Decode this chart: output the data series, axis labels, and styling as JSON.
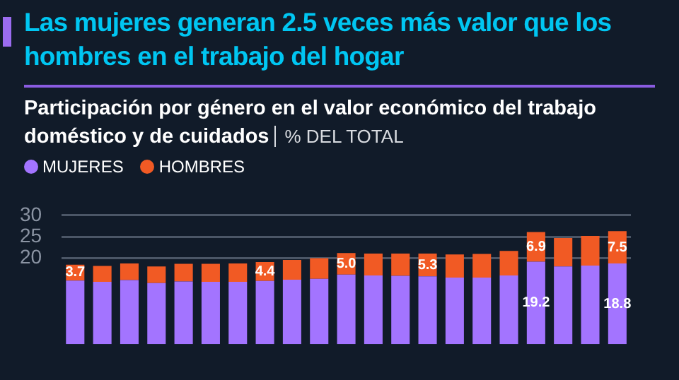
{
  "chart_data": {
    "type": "bar",
    "title": "Las mujeres generan 2.5 veces más valor que los hombres en el trabajo del hogar",
    "subtitle": "Participación por género en el valor económico del trabajo doméstico y de cuidados",
    "ylabel": "% DEL TOTAL",
    "categories": [
      null,
      null,
      null,
      null,
      null,
      null,
      null,
      null,
      null,
      null,
      null,
      null,
      null,
      null,
      null,
      null,
      null,
      null,
      null,
      null,
      null
    ],
    "stacked": true,
    "series": [
      {
        "name": "MUJERES",
        "color": "#a374ff",
        "values": [
          14.8,
          14.5,
          14.9,
          14.2,
          14.6,
          14.5,
          14.5,
          14.7,
          15.0,
          15.2,
          16.2,
          16.0,
          15.9,
          15.8,
          15.5,
          15.5,
          16.0,
          19.2,
          18.1,
          18.3,
          18.8
        ],
        "value_labels": [
          null,
          null,
          null,
          null,
          null,
          null,
          null,
          null,
          null,
          null,
          null,
          null,
          null,
          null,
          null,
          null,
          null,
          "19.2",
          null,
          null,
          "18.8"
        ]
      },
      {
        "name": "HOMBRES",
        "color": "#f15a24",
        "values": [
          3.7,
          3.7,
          3.9,
          3.9,
          4.1,
          4.2,
          4.3,
          4.4,
          4.6,
          4.8,
          5.0,
          5.1,
          5.2,
          5.3,
          5.4,
          5.5,
          5.7,
          6.9,
          6.6,
          6.9,
          7.5
        ],
        "value_labels": [
          "3.7",
          null,
          null,
          null,
          null,
          null,
          null,
          "4.4",
          null,
          null,
          "5.0",
          null,
          null,
          "5.3",
          null,
          null,
          null,
          "6.9",
          null,
          null,
          "7.5"
        ]
      }
    ],
    "ylim": [
      0,
      30
    ],
    "yticks": [
      20,
      25,
      30
    ],
    "grid": "y",
    "legend": "top left"
  }
}
